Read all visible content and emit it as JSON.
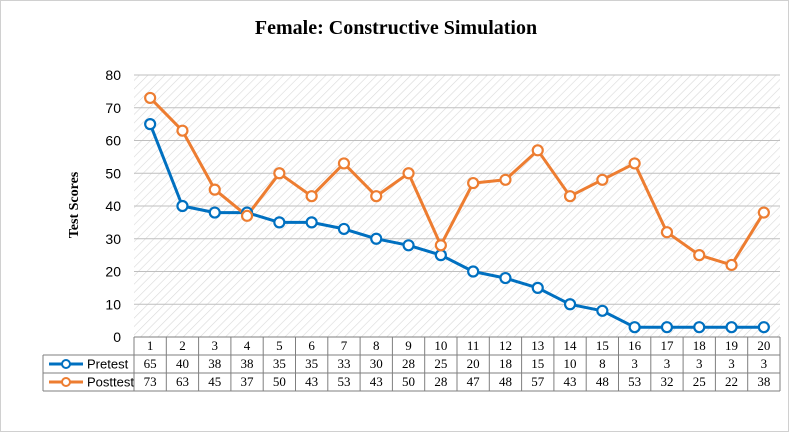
{
  "chart_data": {
    "type": "line",
    "title": "Female: Constructive Simulation",
    "xlabel": "",
    "ylabel": "Test Scores",
    "ylim": [
      0,
      80
    ],
    "ytick_step": 10,
    "categories": [
      "1",
      "2",
      "3",
      "4",
      "5",
      "6",
      "7",
      "8",
      "9",
      "10",
      "11",
      "12",
      "13",
      "14",
      "15",
      "16",
      "17",
      "18",
      "19",
      "20"
    ],
    "series": [
      {
        "name": "Pretest",
        "color": "#0070c0",
        "values": [
          65,
          40,
          38,
          38,
          35,
          35,
          33,
          30,
          28,
          25,
          20,
          18,
          15,
          10,
          8,
          3,
          3,
          3,
          3,
          3
        ]
      },
      {
        "name": "Posttest",
        "color": "#ed7d31",
        "values": [
          73,
          63,
          45,
          37,
          50,
          43,
          53,
          43,
          50,
          28,
          47,
          48,
          57,
          43,
          48,
          53,
          32,
          25,
          22,
          38
        ]
      }
    ],
    "grid": true,
    "plot_fill": "hatched",
    "legend": "data-table"
  }
}
